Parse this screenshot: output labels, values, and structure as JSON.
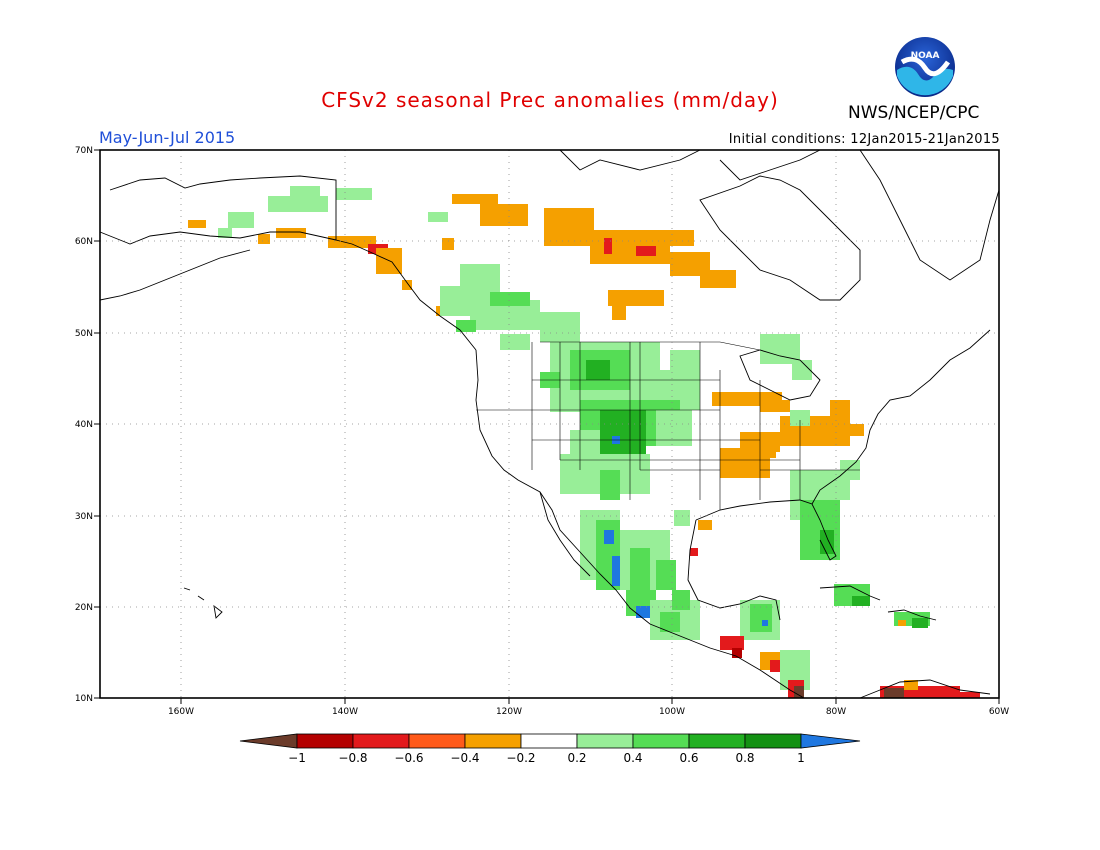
{
  "title": "CFSv2 seasonal Prec anomalies (mm/day)",
  "period": "May-Jun-Jul 2015",
  "initial_conditions": "Initial conditions: 12Jan2015-21Jan2015",
  "agency": "NWS/NCEP/CPC",
  "logo_text": "NOAA",
  "axes": {
    "lon_labels": [
      "160W",
      "140W",
      "120W",
      "100W",
      "80W",
      "60W"
    ],
    "lat_labels": [
      "70N",
      "60N",
      "50N",
      "40N",
      "30N",
      "20N",
      "10N"
    ]
  },
  "colorbar": {
    "labels": [
      "-1",
      "-0.8",
      "-0.6",
      "-0.4",
      "-0.2",
      "0.2",
      "0.4",
      "0.6",
      "0.8",
      "1"
    ],
    "colors": [
      "#6b3b2a",
      "#b40000",
      "#e31a1c",
      "#ff5a1a",
      "#f5a000",
      "#ffffff",
      "#98ee98",
      "#55dd55",
      "#22b022",
      "#139113",
      "#1f77e0"
    ]
  },
  "colors": {
    "title": "#e00000",
    "period": "#1f4fd8",
    "dry_orange": "#f5a000",
    "dry_red": "#e31a1c",
    "wet_light": "#98ee98",
    "wet_mid": "#55dd55",
    "wet_dark": "#22b022",
    "wet_blue": "#1f77e0"
  }
}
